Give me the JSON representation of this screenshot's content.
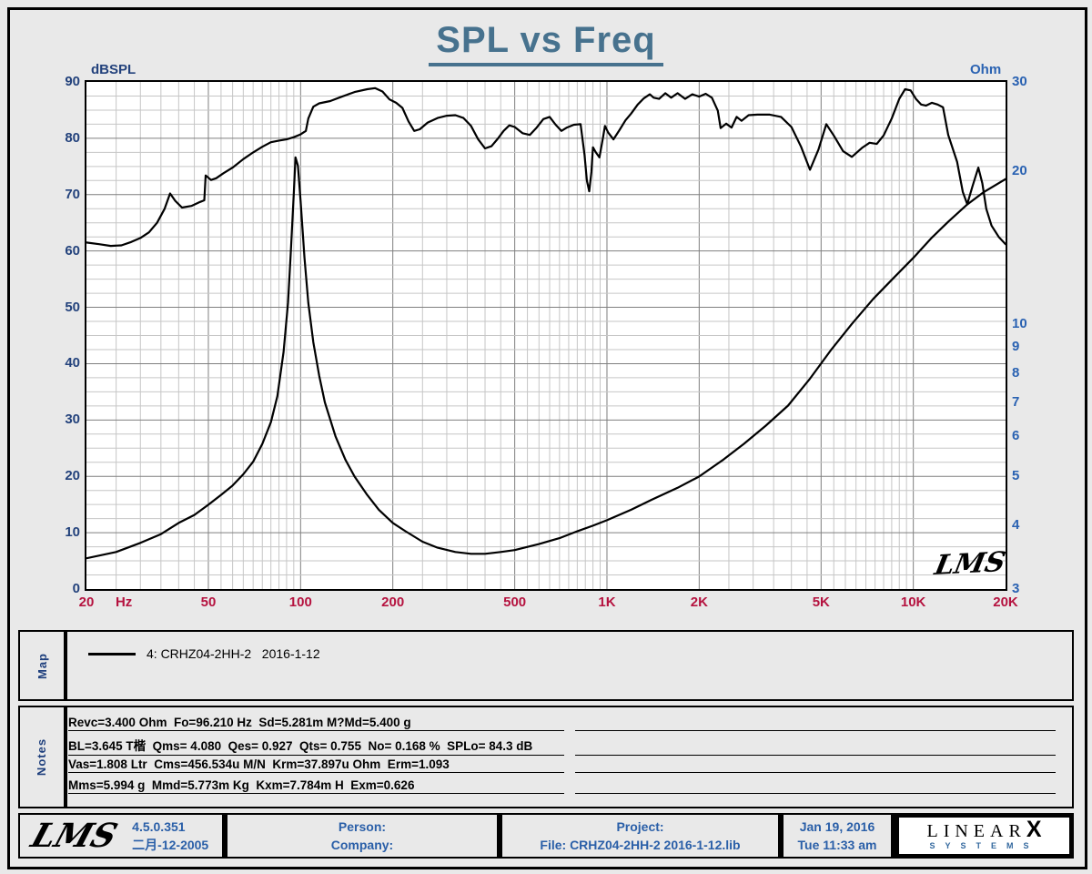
{
  "title": "SPL vs Freq",
  "watermark": "LMS",
  "axes": {
    "left_label": "dBSPL",
    "right_label": "Ohm",
    "left_ticks": [
      90,
      80,
      70,
      60,
      50,
      40,
      30,
      20,
      10,
      0
    ],
    "right_ticks": [
      30,
      20,
      10,
      9,
      8,
      7,
      6,
      5,
      4,
      3
    ],
    "freq_labels": [
      {
        "f": 20,
        "t": "20"
      },
      {
        "f": 26.5,
        "t": "Hz"
      },
      {
        "f": 50,
        "t": "50"
      },
      {
        "f": 100,
        "t": "100"
      },
      {
        "f": 200,
        "t": "200"
      },
      {
        "f": 500,
        "t": "500"
      },
      {
        "f": 1000,
        "t": "1K"
      },
      {
        "f": 2000,
        "t": "2K"
      },
      {
        "f": 5000,
        "t": "5K"
      },
      {
        "f": 10000,
        "t": "10K"
      },
      {
        "f": 20000,
        "t": "20K"
      }
    ]
  },
  "chart_data": {
    "type": "line",
    "title": "SPL vs Freq",
    "x_axis": {
      "label": "Hz",
      "scale": "log",
      "min": 20,
      "max": 20000
    },
    "y_left": {
      "label": "dBSPL",
      "scale": "linear",
      "min": 0,
      "max": 90,
      "major_step": 10,
      "minor_step": 2.5
    },
    "y_right": {
      "label": "Ohm",
      "scale": "log",
      "min": 3,
      "max": 30,
      "ticks": [
        30,
        20,
        10,
        9,
        8,
        7,
        6,
        5,
        4,
        3
      ]
    },
    "grid": "on",
    "legend": "4: CRHZ04-2HH-2   2016-1-12",
    "series": [
      {
        "name": "SPL",
        "axis": "left",
        "color": "#000000",
        "points": [
          [
            20,
            61.5
          ],
          [
            22,
            61.2
          ],
          [
            24,
            60.9
          ],
          [
            26,
            61.0
          ],
          [
            28,
            61.6
          ],
          [
            30,
            62.3
          ],
          [
            32,
            63.3
          ],
          [
            34,
            65.0
          ],
          [
            36,
            67.5
          ],
          [
            37.5,
            70.2
          ],
          [
            39,
            68.9
          ],
          [
            41,
            67.7
          ],
          [
            44,
            68.0
          ],
          [
            47,
            68.7
          ],
          [
            48.5,
            69.0
          ],
          [
            49,
            73.4
          ],
          [
            51,
            72.6
          ],
          [
            53,
            72.9
          ],
          [
            56,
            73.8
          ],
          [
            60,
            74.8
          ],
          [
            65,
            76.3
          ],
          [
            70,
            77.5
          ],
          [
            75,
            78.5
          ],
          [
            80,
            79.3
          ],
          [
            85,
            79.6
          ],
          [
            90,
            79.8
          ],
          [
            95,
            80.2
          ],
          [
            100,
            80.7
          ],
          [
            104,
            81.3
          ],
          [
            106,
            83.5
          ],
          [
            110,
            85.6
          ],
          [
            115,
            86.2
          ],
          [
            125,
            86.6
          ],
          [
            135,
            87.3
          ],
          [
            150,
            88.2
          ],
          [
            165,
            88.7
          ],
          [
            175,
            88.9
          ],
          [
            185,
            88.3
          ],
          [
            195,
            86.9
          ],
          [
            205,
            86.3
          ],
          [
            215,
            85.4
          ],
          [
            225,
            83.0
          ],
          [
            235,
            81.3
          ],
          [
            245,
            81.6
          ],
          [
            260,
            82.8
          ],
          [
            280,
            83.6
          ],
          [
            300,
            84.0
          ],
          [
            320,
            84.1
          ],
          [
            340,
            83.6
          ],
          [
            360,
            82.2
          ],
          [
            380,
            79.8
          ],
          [
            400,
            78.2
          ],
          [
            420,
            78.6
          ],
          [
            440,
            79.9
          ],
          [
            460,
            81.3
          ],
          [
            480,
            82.3
          ],
          [
            500,
            82.0
          ],
          [
            530,
            80.9
          ],
          [
            560,
            80.6
          ],
          [
            590,
            81.9
          ],
          [
            620,
            83.4
          ],
          [
            650,
            83.8
          ],
          [
            680,
            82.4
          ],
          [
            710,
            81.3
          ],
          [
            740,
            81.9
          ],
          [
            780,
            82.4
          ],
          [
            820,
            82.5
          ],
          [
            845,
            77.0
          ],
          [
            860,
            72.5
          ],
          [
            875,
            70.6
          ],
          [
            890,
            74.0
          ],
          [
            900,
            78.4
          ],
          [
            920,
            77.5
          ],
          [
            945,
            76.6
          ],
          [
            970,
            80.0
          ],
          [
            985,
            82.2
          ],
          [
            1010,
            81.0
          ],
          [
            1050,
            79.8
          ],
          [
            1100,
            81.5
          ],
          [
            1150,
            83.2
          ],
          [
            1200,
            84.4
          ],
          [
            1260,
            86.0
          ],
          [
            1320,
            87.1
          ],
          [
            1380,
            87.8
          ],
          [
            1420,
            87.2
          ],
          [
            1480,
            87.0
          ],
          [
            1550,
            88.0
          ],
          [
            1620,
            87.2
          ],
          [
            1700,
            88.0
          ],
          [
            1800,
            87.0
          ],
          [
            1900,
            87.8
          ],
          [
            2000,
            87.4
          ],
          [
            2100,
            87.9
          ],
          [
            2200,
            87.2
          ],
          [
            2300,
            84.9
          ],
          [
            2350,
            81.8
          ],
          [
            2450,
            82.6
          ],
          [
            2550,
            81.9
          ],
          [
            2650,
            83.8
          ],
          [
            2750,
            83.1
          ],
          [
            2900,
            84.1
          ],
          [
            3100,
            84.2
          ],
          [
            3400,
            84.2
          ],
          [
            3700,
            83.8
          ],
          [
            4000,
            82.0
          ],
          [
            4300,
            78.5
          ],
          [
            4600,
            74.4
          ],
          [
            4900,
            78.0
          ],
          [
            5200,
            82.5
          ],
          [
            5500,
            80.5
          ],
          [
            5900,
            77.7
          ],
          [
            6300,
            76.7
          ],
          [
            6800,
            78.3
          ],
          [
            7200,
            79.2
          ],
          [
            7600,
            79.0
          ],
          [
            8000,
            80.5
          ],
          [
            8500,
            83.5
          ],
          [
            9000,
            87.0
          ],
          [
            9400,
            88.7
          ],
          [
            9800,
            88.5
          ],
          [
            10200,
            87.0
          ],
          [
            10600,
            86.0
          ],
          [
            11000,
            85.8
          ],
          [
            11500,
            86.3
          ],
          [
            12000,
            86.0
          ],
          [
            12500,
            85.5
          ],
          [
            13000,
            80.6
          ],
          [
            13900,
            75.8
          ],
          [
            14500,
            70.5
          ],
          [
            15000,
            68.3
          ],
          [
            15600,
            71.5
          ],
          [
            16300,
            74.8
          ],
          [
            16800,
            72.0
          ],
          [
            17300,
            67.5
          ],
          [
            18000,
            64.5
          ],
          [
            19000,
            62.5
          ],
          [
            20000,
            61.2
          ]
        ]
      },
      {
        "name": "Impedance",
        "axis": "right",
        "color": "#000000",
        "points": [
          [
            20,
            3.45
          ],
          [
            25,
            3.55
          ],
          [
            30,
            3.7
          ],
          [
            35,
            3.85
          ],
          [
            40,
            4.05
          ],
          [
            45,
            4.2
          ],
          [
            50,
            4.4
          ],
          [
            55,
            4.6
          ],
          [
            60,
            4.8
          ],
          [
            65,
            5.05
          ],
          [
            70,
            5.35
          ],
          [
            75,
            5.8
          ],
          [
            80,
            6.4
          ],
          [
            84,
            7.2
          ],
          [
            88,
            8.8
          ],
          [
            91,
            11.0
          ],
          [
            93,
            14.0
          ],
          [
            95,
            18.0
          ],
          [
            96.2,
            21.3
          ],
          [
            98,
            20.5
          ],
          [
            100,
            17.5
          ],
          [
            103,
            13.5
          ],
          [
            106,
            11.0
          ],
          [
            110,
            9.2
          ],
          [
            115,
            7.9
          ],
          [
            120,
            7.0
          ],
          [
            130,
            6.0
          ],
          [
            140,
            5.4
          ],
          [
            150,
            5.0
          ],
          [
            165,
            4.6
          ],
          [
            180,
            4.3
          ],
          [
            200,
            4.05
          ],
          [
            220,
            3.9
          ],
          [
            250,
            3.72
          ],
          [
            280,
            3.62
          ],
          [
            320,
            3.55
          ],
          [
            360,
            3.52
          ],
          [
            400,
            3.52
          ],
          [
            450,
            3.55
          ],
          [
            500,
            3.58
          ],
          [
            600,
            3.68
          ],
          [
            700,
            3.78
          ],
          [
            800,
            3.9
          ],
          [
            900,
            4.0
          ],
          [
            1000,
            4.1
          ],
          [
            1200,
            4.3
          ],
          [
            1400,
            4.5
          ],
          [
            1700,
            4.75
          ],
          [
            2000,
            5.0
          ],
          [
            2400,
            5.4
          ],
          [
            2800,
            5.8
          ],
          [
            3300,
            6.3
          ],
          [
            3900,
            6.9
          ],
          [
            4600,
            7.8
          ],
          [
            5400,
            8.9
          ],
          [
            6300,
            10.0
          ],
          [
            7400,
            11.2
          ],
          [
            8600,
            12.3
          ],
          [
            10000,
            13.5
          ],
          [
            11500,
            14.8
          ],
          [
            13000,
            15.9
          ],
          [
            15000,
            17.2
          ],
          [
            17000,
            18.2
          ],
          [
            20000,
            19.3
          ]
        ]
      }
    ]
  },
  "map": {
    "label": "Map",
    "legend": "4: CRHZ04-2HH-2   2016-1-12"
  },
  "notes": {
    "label": "Notes",
    "lines": [
      "Revc=3.400 Ohm  Fo=96.210 Hz  Sd=5.281m M?Md=5.400 g",
      "BL=3.645 T楷  Qms= 4.080  Qes= 0.927  Qts= 0.755  No= 0.168 %  SPLo= 84.3 dB",
      "Vas=1.808 Ltr  Cms=456.534u M/N  Krm=37.897u Ohm  Erm=1.093",
      "Mms=5.994 g  Mmd=5.773m Kg  Kxm=7.784m H  Exm=0.626"
    ]
  },
  "footer": {
    "logo_text": "LMS",
    "version": "4.5.0.351",
    "version_date": "二月-12-2005",
    "person_label": "Person:",
    "company_label": "Company:",
    "project_label": "Project:",
    "file_label": "File: CRHZ04-2HH-2  2016-1-12.lib",
    "date": "Jan 19, 2016",
    "time": "Tue 11:33 am",
    "brand_linear": "LINEAR",
    "brand_x": "X",
    "brand_systems": "SYSTEMS"
  },
  "colors": {
    "title": "#47728e",
    "left_axis": "#23427c",
    "right_axis": "#2a62b2",
    "freq_axis": "#b5123f",
    "footer_text": "#2a5fa8",
    "grid_major": "#7f7f7f",
    "grid_minor": "#c6c6c6",
    "curve": "#000000",
    "plot_bg": "#ffffff",
    "page_bg": "#e9e9e9"
  }
}
